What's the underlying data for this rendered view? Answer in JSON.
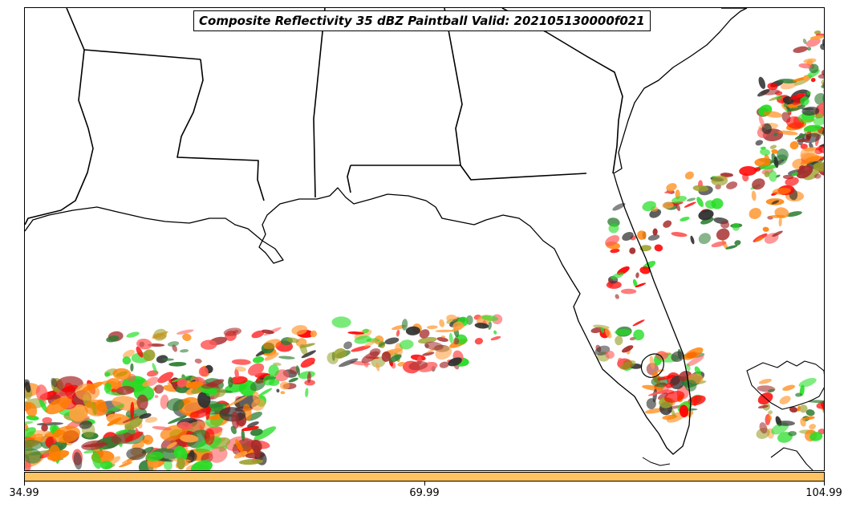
{
  "title": "Composite Reflectivity 35 dBZ Paintball Valid: 202105130000f021",
  "colorbar": {
    "color": "#ffc462",
    "ticks": [
      "34.99",
      "69.99",
      "104.99"
    ]
  },
  "member_colors": [
    "#ff0000",
    "#ff7f00",
    "#22dd22",
    "#2e7d32",
    "#a52a2a",
    "#9aa02a",
    "#2f2f2f",
    "#ff5a5a",
    "#ffa040"
  ],
  "map": {
    "region": "Southeastern United States and Gulf of Mexico",
    "features": [
      "state-borders",
      "coastlines"
    ]
  }
}
